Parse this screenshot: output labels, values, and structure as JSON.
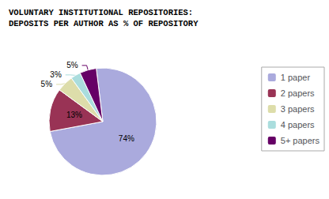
{
  "chart_data": {
    "type": "pie",
    "title": "VOLUNTARY INSTITUTIONAL REPOSITORIES:\nDEPOSITS PER AUTHOR AS % OF REPOSITORY",
    "categories": [
      "1 paper",
      "2 papers",
      "3 papers",
      "4 papers",
      "5+ papers"
    ],
    "values": [
      74,
      13,
      5,
      3,
      5
    ],
    "value_labels": [
      "74%",
      "13%",
      "5%",
      "3%",
      "5%"
    ],
    "colors": [
      "#aaaadd",
      "#993355",
      "#ddddaa",
      "#aadddd",
      "#660066"
    ],
    "data_labels": true,
    "legend": "right"
  }
}
